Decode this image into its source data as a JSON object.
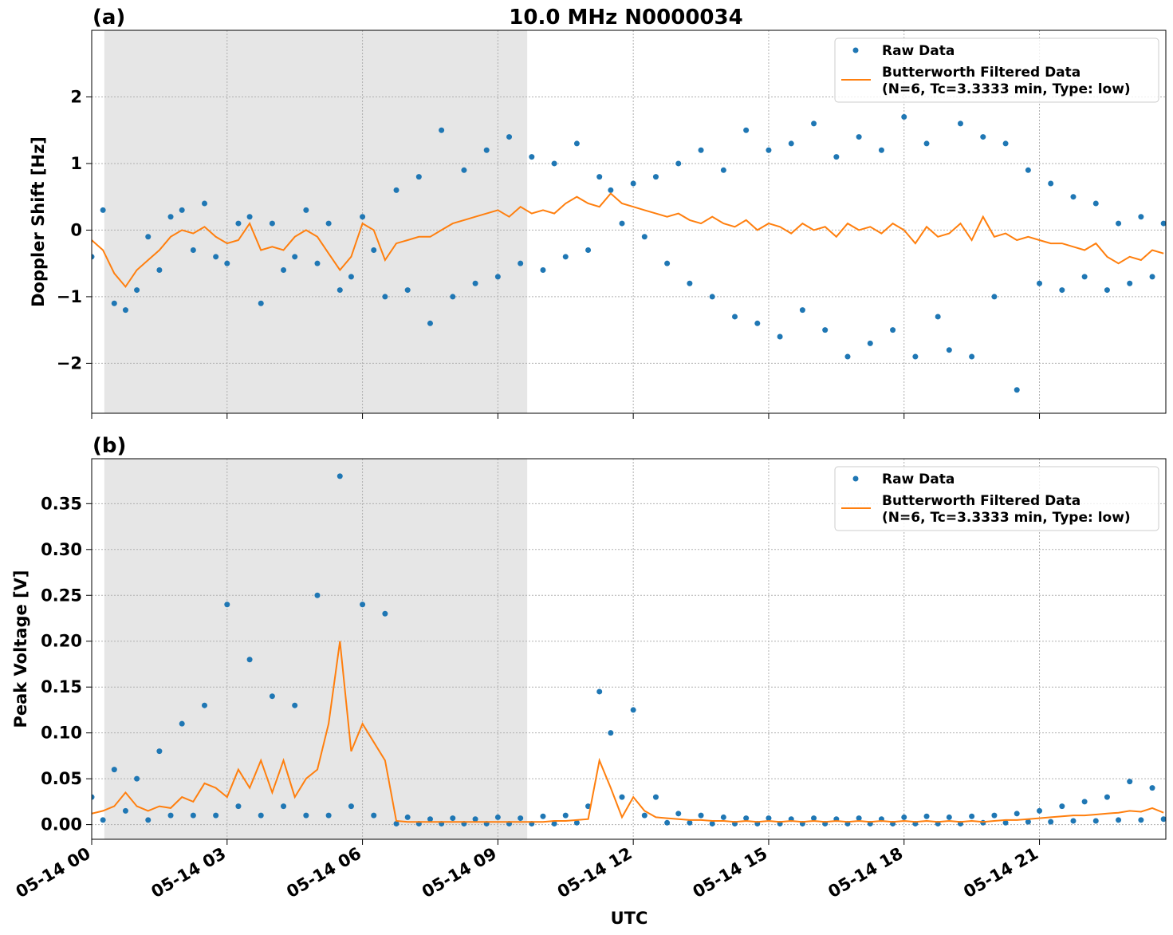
{
  "chart_data": [
    {
      "type": "scatter-line",
      "title": "10.0 MHz N0000034",
      "panel_label": "(a)",
      "ylabel": "Doppler Shift [Hz]",
      "x": [
        0,
        0.25,
        0.5,
        0.75,
        1,
        1.25,
        1.5,
        1.75,
        2,
        2.25,
        2.5,
        2.75,
        3,
        3.25,
        3.5,
        3.75,
        4,
        4.25,
        4.5,
        4.75,
        5,
        5.25,
        5.5,
        5.75,
        6,
        6.25,
        6.5,
        6.75,
        7,
        7.25,
        7.5,
        7.75,
        8,
        8.25,
        8.5,
        8.75,
        9,
        9.25,
        9.5,
        9.75,
        10,
        10.25,
        10.5,
        10.75,
        11,
        11.25,
        11.5,
        11.75,
        12,
        12.25,
        12.5,
        12.75,
        13,
        13.25,
        13.5,
        13.75,
        14,
        14.25,
        14.5,
        14.75,
        15,
        15.25,
        15.5,
        15.75,
        16,
        16.25,
        16.5,
        16.75,
        17,
        17.25,
        17.5,
        17.75,
        18,
        18.25,
        18.5,
        18.75,
        19,
        19.25,
        19.5,
        19.75,
        20,
        20.25,
        20.5,
        20.75,
        21,
        21.25,
        21.5,
        21.75,
        22,
        22.25,
        22.5,
        22.75,
        23,
        23.25,
        23.5,
        23.75
      ],
      "series": [
        {
          "name": "Raw Data",
          "color": "#1f77b4",
          "values": [
            -0.4,
            0.3,
            -1.1,
            -1.2,
            -0.9,
            -0.1,
            -0.6,
            0.2,
            0.3,
            -0.3,
            0.4,
            -0.4,
            -0.5,
            0.1,
            0.2,
            -1.1,
            0.1,
            -0.6,
            -0.4,
            0.3,
            -0.5,
            0.1,
            -0.9,
            -0.7,
            0.2,
            -0.3,
            -1.0,
            0.6,
            -0.9,
            0.8,
            -1.4,
            1.5,
            -1.0,
            0.9,
            -0.8,
            1.2,
            -0.7,
            1.4,
            -0.5,
            1.1,
            -0.6,
            1.0,
            -0.4,
            1.3,
            -0.3,
            0.8,
            0.6,
            0.1,
            0.7,
            -0.1,
            0.8,
            -0.5,
            1.0,
            -0.8,
            1.2,
            -1.0,
            0.9,
            -1.3,
            1.5,
            -1.4,
            1.2,
            -1.6,
            1.3,
            -1.2,
            1.6,
            -1.5,
            1.1,
            -1.9,
            1.4,
            -1.7,
            1.2,
            -1.5,
            1.7,
            -1.9,
            1.3,
            -1.3,
            -1.8,
            1.6,
            -1.9,
            1.4,
            -1.0,
            1.3,
            -2.4,
            0.9,
            -0.8,
            0.7,
            -0.9,
            0.5,
            -0.7,
            0.4,
            -0.9,
            0.1,
            -0.8,
            0.2,
            -0.7,
            0.1
          ]
        },
        {
          "name": "Butterworth Filtered Data\n(N=6, Tc=3.3333 min, Type: low)",
          "color": "#ff7f0e",
          "values": [
            -0.15,
            -0.3,
            -0.65,
            -0.85,
            -0.6,
            -0.45,
            -0.3,
            -0.1,
            0.0,
            -0.05,
            0.05,
            -0.1,
            -0.2,
            -0.15,
            0.1,
            -0.3,
            -0.25,
            -0.3,
            -0.1,
            0.0,
            -0.1,
            -0.35,
            -0.6,
            -0.4,
            0.1,
            0.0,
            -0.45,
            -0.2,
            -0.15,
            -0.1,
            -0.1,
            0.0,
            0.1,
            0.15,
            0.2,
            0.25,
            0.3,
            0.2,
            0.35,
            0.25,
            0.3,
            0.25,
            0.4,
            0.5,
            0.4,
            0.35,
            0.55,
            0.4,
            0.35,
            0.3,
            0.25,
            0.2,
            0.25,
            0.15,
            0.1,
            0.2,
            0.1,
            0.05,
            0.15,
            0.0,
            0.1,
            0.05,
            -0.05,
            0.1,
            0.0,
            0.05,
            -0.1,
            0.1,
            0.0,
            0.05,
            -0.05,
            0.1,
            0.0,
            -0.2,
            0.05,
            -0.1,
            -0.05,
            0.1,
            -0.15,
            0.2,
            -0.1,
            -0.05,
            -0.15,
            -0.1,
            -0.15,
            -0.2,
            -0.2,
            -0.25,
            -0.3,
            -0.2,
            -0.4,
            -0.5,
            -0.4,
            -0.45,
            -0.3,
            -0.35
          ]
        }
      ],
      "shaded_span": [
        0.28,
        9.65
      ],
      "xlim": [
        0,
        23.8
      ],
      "xticks": [
        0,
        3,
        6,
        9,
        12,
        15,
        18,
        21
      ],
      "ylim": [
        -2.75,
        3.0
      ],
      "yticks": [
        {
          "value": -2,
          "label": "−2"
        },
        {
          "value": -1,
          "label": "−1"
        },
        0,
        1,
        2
      ],
      "grid": true,
      "legend": "upper right"
    },
    {
      "type": "scatter-line",
      "panel_label": "(b)",
      "ylabel": "Peak Voltage [V]",
      "xlabel": "UTC",
      "x": [
        0,
        0.25,
        0.5,
        0.75,
        1,
        1.25,
        1.5,
        1.75,
        2,
        2.25,
        2.5,
        2.75,
        3,
        3.25,
        3.5,
        3.75,
        4,
        4.25,
        4.5,
        4.75,
        5,
        5.25,
        5.5,
        5.75,
        6,
        6.25,
        6.5,
        6.75,
        7,
        7.25,
        7.5,
        7.75,
        8,
        8.25,
        8.5,
        8.75,
        9,
        9.25,
        9.5,
        9.75,
        10,
        10.25,
        10.5,
        10.75,
        11,
        11.25,
        11.5,
        11.75,
        12,
        12.25,
        12.5,
        12.75,
        13,
        13.25,
        13.5,
        13.75,
        14,
        14.25,
        14.5,
        14.75,
        15,
        15.25,
        15.5,
        15.75,
        16,
        16.25,
        16.5,
        16.75,
        17,
        17.25,
        17.5,
        17.75,
        18,
        18.25,
        18.5,
        18.75,
        19,
        19.25,
        19.5,
        19.75,
        20,
        20.25,
        20.5,
        20.75,
        21,
        21.25,
        21.5,
        21.75,
        22,
        22.25,
        22.5,
        22.75,
        23,
        23.25,
        23.5,
        23.75
      ],
      "series": [
        {
          "name": "Raw Data",
          "color": "#1f77b4",
          "values": [
            0.03,
            0.005,
            0.06,
            0.015,
            0.05,
            0.005,
            0.08,
            0.01,
            0.11,
            0.01,
            0.13,
            0.01,
            0.24,
            0.02,
            0.18,
            0.01,
            0.14,
            0.02,
            0.13,
            0.01,
            0.25,
            0.01,
            0.38,
            0.02,
            0.24,
            0.01,
            0.23,
            0.001,
            0.008,
            0.001,
            0.006,
            0.001,
            0.007,
            0.001,
            0.006,
            0.001,
            0.008,
            0.001,
            0.007,
            0.001,
            0.009,
            0.001,
            0.01,
            0.002,
            0.02,
            0.145,
            0.1,
            0.03,
            0.125,
            0.01,
            0.03,
            0.002,
            0.012,
            0.002,
            0.01,
            0.001,
            0.008,
            0.001,
            0.007,
            0.001,
            0.007,
            0.001,
            0.006,
            0.001,
            0.007,
            0.001,
            0.006,
            0.001,
            0.007,
            0.001,
            0.006,
            0.001,
            0.008,
            0.001,
            0.009,
            0.001,
            0.008,
            0.001,
            0.009,
            0.002,
            0.01,
            0.002,
            0.012,
            0.003,
            0.015,
            0.003,
            0.02,
            0.004,
            0.025,
            0.004,
            0.03,
            0.005,
            0.047,
            0.005,
            0.04,
            0.006
          ]
        },
        {
          "name": "Butterworth Filtered Data\n(N=6, Tc=3.3333 min, Type: low)",
          "color": "#ff7f0e",
          "values": [
            0.012,
            0.015,
            0.02,
            0.035,
            0.02,
            0.015,
            0.02,
            0.018,
            0.03,
            0.025,
            0.045,
            0.04,
            0.03,
            0.06,
            0.04,
            0.07,
            0.035,
            0.07,
            0.03,
            0.05,
            0.06,
            0.11,
            0.2,
            0.08,
            0.11,
            0.09,
            0.07,
            0.004,
            0.003,
            0.003,
            0.003,
            0.003,
            0.003,
            0.003,
            0.003,
            0.003,
            0.003,
            0.003,
            0.003,
            0.003,
            0.003,
            0.004,
            0.004,
            0.005,
            0.006,
            0.07,
            0.04,
            0.008,
            0.03,
            0.015,
            0.008,
            0.007,
            0.006,
            0.005,
            0.005,
            0.004,
            0.004,
            0.003,
            0.004,
            0.003,
            0.004,
            0.003,
            0.004,
            0.003,
            0.004,
            0.003,
            0.004,
            0.003,
            0.004,
            0.003,
            0.004,
            0.003,
            0.004,
            0.003,
            0.004,
            0.003,
            0.004,
            0.003,
            0.004,
            0.003,
            0.004,
            0.005,
            0.005,
            0.006,
            0.007,
            0.008,
            0.009,
            0.01,
            0.01,
            0.011,
            0.012,
            0.013,
            0.015,
            0.014,
            0.018,
            0.013
          ]
        }
      ],
      "shaded_span": [
        0.28,
        9.65
      ],
      "xlim": [
        0,
        23.8
      ],
      "xticks": [
        {
          "value": 0,
          "label": "05-14 00"
        },
        {
          "value": 3,
          "label": "05-14 03"
        },
        {
          "value": 6,
          "label": "05-14 06"
        },
        {
          "value": 9,
          "label": "05-14 09"
        },
        {
          "value": 12,
          "label": "05-14 12"
        },
        {
          "value": 15,
          "label": "05-14 15"
        },
        {
          "value": 18,
          "label": "05-14 18"
        },
        {
          "value": 21,
          "label": "05-14 21"
        }
      ],
      "ylim": [
        -0.016,
        0.399
      ],
      "yticks": [
        {
          "value": 0,
          "label": "0.00"
        },
        {
          "value": 0.05,
          "label": "0.05"
        },
        {
          "value": 0.1,
          "label": "0.10"
        },
        {
          "value": 0.15,
          "label": "0.15"
        },
        {
          "value": 0.2,
          "label": "0.20"
        },
        {
          "value": 0.25,
          "label": "0.25"
        },
        {
          "value": 0.3,
          "label": "0.30"
        },
        {
          "value": 0.35,
          "label": "0.35"
        }
      ],
      "grid": true,
      "legend": "upper right"
    }
  ]
}
